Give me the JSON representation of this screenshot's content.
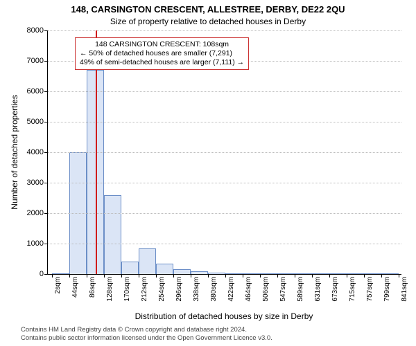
{
  "title": "148, CARSINGTON CRESCENT, ALLESTREE, DERBY, DE22 2QU",
  "subtitle": "Size of property relative to detached houses in Derby",
  "chart": {
    "type": "histogram",
    "ylabel": "Number of detached properties",
    "xlabel": "Distribution of detached houses by size in Derby",
    "ylim": [
      0,
      8000
    ],
    "yticks": [
      0,
      1000,
      2000,
      3000,
      4000,
      5000,
      6000,
      7000,
      8000
    ],
    "xtick_labels": [
      "2sqm",
      "44sqm",
      "86sqm",
      "128sqm",
      "170sqm",
      "212sqm",
      "254sqm",
      "296sqm",
      "338sqm",
      "380sqm",
      "422sqm",
      "464sqm",
      "506sqm",
      "547sqm",
      "589sqm",
      "631sqm",
      "673sqm",
      "715sqm",
      "757sqm",
      "799sqm",
      "841sqm"
    ],
    "bar_values": [
      0,
      4000,
      6700,
      2600,
      400,
      850,
      350,
      150,
      80,
      50,
      30,
      20,
      10,
      10,
      0,
      0,
      0,
      0,
      0,
      0
    ],
    "bar_fill": "#dbe5f6",
    "bar_stroke": "#6b8ec7",
    "grid_color": "#bbbbbb",
    "background_color": "#ffffff",
    "axis_fontsize": 11,
    "label_fontsize": 12,
    "title_fontsize": 13,
    "marker_value_sqm": 108,
    "marker_color": "#d01c1c",
    "bar_width_ratio": 1.0
  },
  "annotation": {
    "line1": "148 CARSINGTON CRESCENT: 108sqm",
    "line2": "← 50% of detached houses are smaller (7,291)",
    "line3": "49% of semi-detached houses are larger (7,111) →",
    "border_color": "#cc3333"
  },
  "footer": {
    "line1": "Contains HM Land Registry data © Crown copyright and database right 2024.",
    "line2": "Contains public sector information licensed under the Open Government Licence v3.0."
  }
}
